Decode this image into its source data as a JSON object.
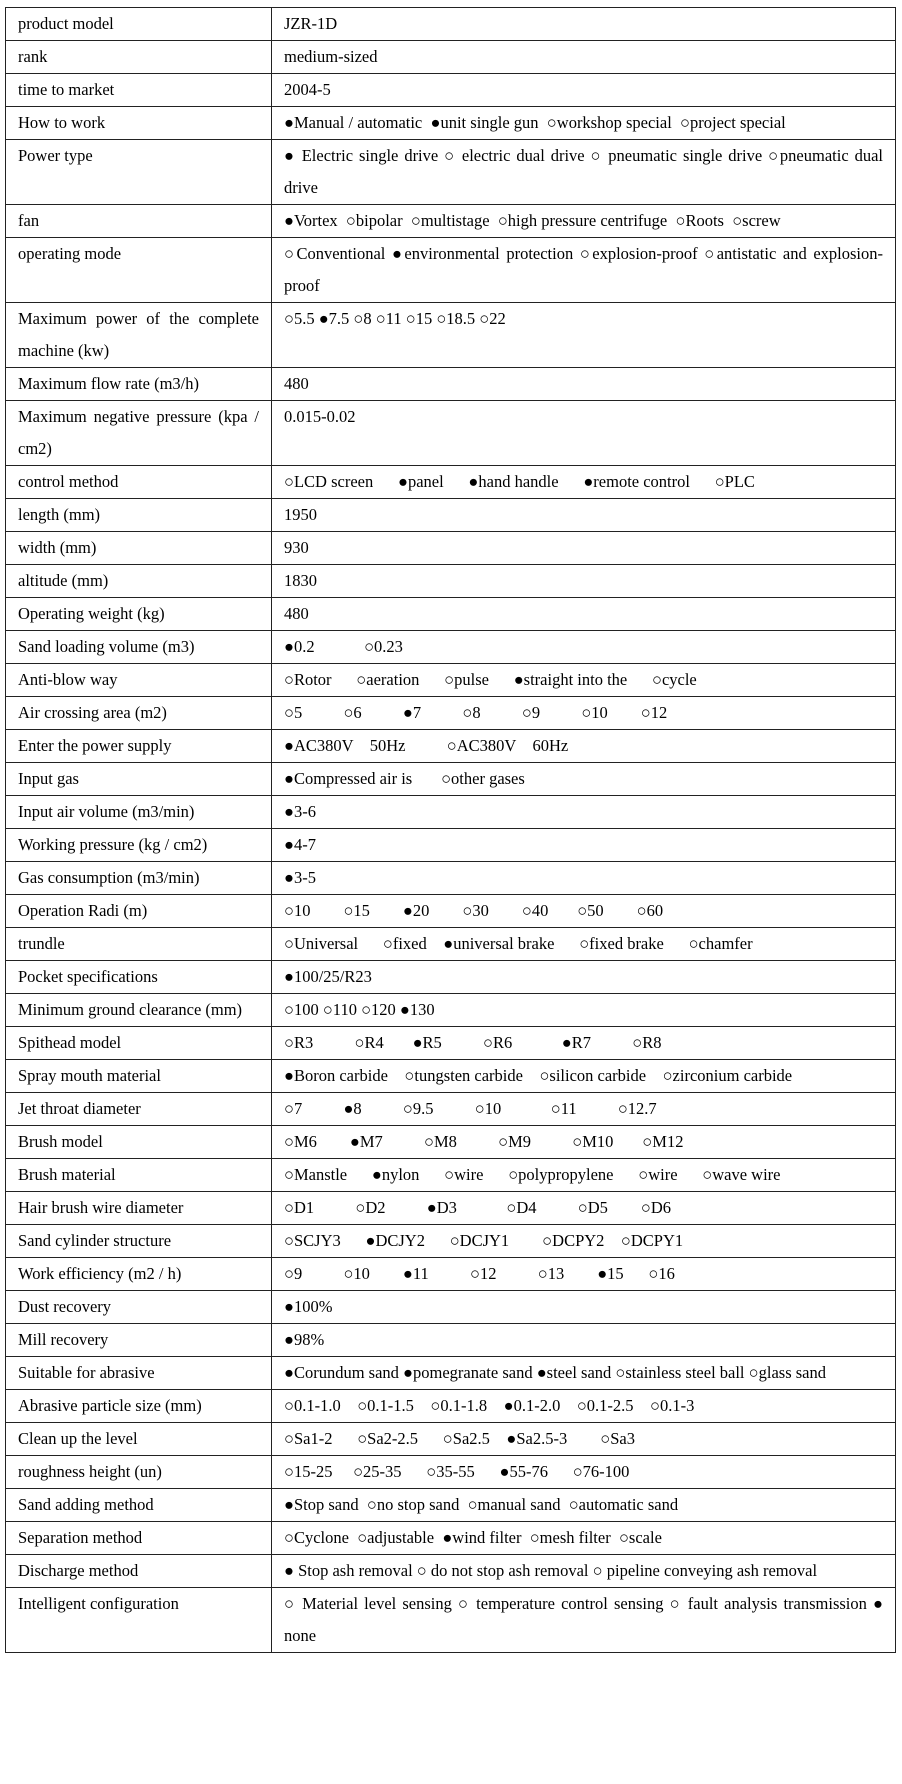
{
  "rows": [
    [
      "product model",
      "JZR-1D"
    ],
    [
      "rank",
      "medium-sized"
    ],
    [
      "time to market",
      "2004-5"
    ],
    [
      "How to work",
      "●Manual / automatic  ●unit single gun  ○workshop special  ○project special"
    ],
    [
      "Power type",
      "● Electric single drive ○ electric dual drive ○ pneumatic single drive ○pneumatic dual drive"
    ],
    [
      "fan",
      "●Vortex  ○bipolar  ○multistage  ○high pressure centrifuge  ○Roots  ○screw"
    ],
    [
      "operating mode",
      "○Conventional ●environmental protection ○explosion-proof ○antistatic and explosion-proof"
    ],
    [
      "Maximum power of the complete machine (kw)",
      "○5.5       ●7.5       ○8       ○11       ○15      ○18.5       ○22"
    ],
    [
      "Maximum flow rate (m3/h)",
      "480"
    ],
    [
      "Maximum negative pressure (kpa / cm2)",
      "0.015-0.02"
    ],
    [
      "control method",
      "○LCD screen      ●panel      ●hand handle      ●remote control      ○PLC"
    ],
    [
      "length (mm)",
      "1950"
    ],
    [
      "width (mm)",
      "930"
    ],
    [
      "altitude (mm)",
      "1830"
    ],
    [
      "Operating weight (kg)",
      "480"
    ],
    [
      "Sand loading volume (m3)",
      "●0.2            ○0.23"
    ],
    [
      "Anti-blow way",
      "○Rotor      ○aeration      ○pulse      ●straight into the      ○cycle"
    ],
    [
      "Air crossing area (m2)",
      "○5          ○6          ●7          ○8          ○9          ○10        ○12"
    ],
    [
      "Enter the power supply",
      "●AC380V    50Hz          ○AC380V    60Hz"
    ],
    [
      "Input gas",
      "●Compressed air is       ○other gases"
    ],
    [
      "Input air volume (m3/min)",
      "●3-6"
    ],
    [
      "Working pressure (kg / cm2)",
      "●4-7"
    ],
    [
      "Gas consumption (m3/min)",
      "●3-5"
    ],
    [
      "Operation Radi (m)",
      "○10        ○15        ●20        ○30        ○40       ○50        ○60"
    ],
    [
      "trundle",
      "○Universal      ○fixed    ●universal brake      ○fixed brake      ○chamfer"
    ],
    [
      "Pocket specifications",
      "●100/25/R23"
    ],
    [
      "Minimum ground clearance (mm)",
      "○100            ○110               ○120                 ●130"
    ],
    [
      "Spithead model",
      "○R3          ○R4       ●R5          ○R6            ●R7          ○R8"
    ],
    [
      "Spray mouth material",
      "●Boron carbide    ○tungsten carbide    ○silicon carbide    ○zirconium carbide"
    ],
    [
      "Jet throat diameter",
      "○7          ●8          ○9.5          ○10            ○11          ○12.7"
    ],
    [
      "Brush model",
      "○M6        ●M7          ○M8          ○M9          ○M10       ○M12"
    ],
    [
      "Brush material",
      "○Manstle      ●nylon      ○wire      ○polypropylene      ○wire      ○wave wire"
    ],
    [
      "Hair brush wire diameter",
      "○D1          ○D2          ●D3            ○D4          ○D5        ○D6"
    ],
    [
      "Sand cylinder structure",
      "○SCJY3      ●DCJY2      ○DCJY1        ○DCPY2    ○DCPY1"
    ],
    [
      "Work efficiency (m2 / h)",
      "○9          ○10        ●11          ○12          ○13        ●15      ○16"
    ],
    [
      "Dust recovery",
      "●100%"
    ],
    [
      "Mill recovery",
      "●98%"
    ],
    [
      "Suitable for abrasive",
      "●Corundum sand ●pomegranate sand ●steel sand ○stainless steel ball ○glass sand"
    ],
    [
      "Abrasive particle size (mm)",
      "○0.1-1.0    ○0.1-1.5    ○0.1-1.8    ●0.1-2.0    ○0.1-2.5    ○0.1-3"
    ],
    [
      "Clean up the level",
      "○Sa1-2      ○Sa2-2.5      ○Sa2.5    ●Sa2.5-3        ○Sa3"
    ],
    [
      "roughness height (un)",
      "○15-25     ○25-35      ○35-55      ●55-76      ○76-100"
    ],
    [
      "Sand adding method",
      "●Stop sand  ○no stop sand  ○manual sand  ○automatic sand"
    ],
    [
      "Separation method",
      "○Cyclone  ○adjustable  ●wind filter  ○mesh filter  ○scale"
    ],
    [
      "Discharge method",
      "● Stop ash removal ○ do not stop ash removal ○ pipeline conveying ash removal"
    ],
    [
      "Intelligent configuration",
      "○ Material level sensing ○ temperature control sensing ○ fault analysis transmission ● none"
    ]
  ]
}
